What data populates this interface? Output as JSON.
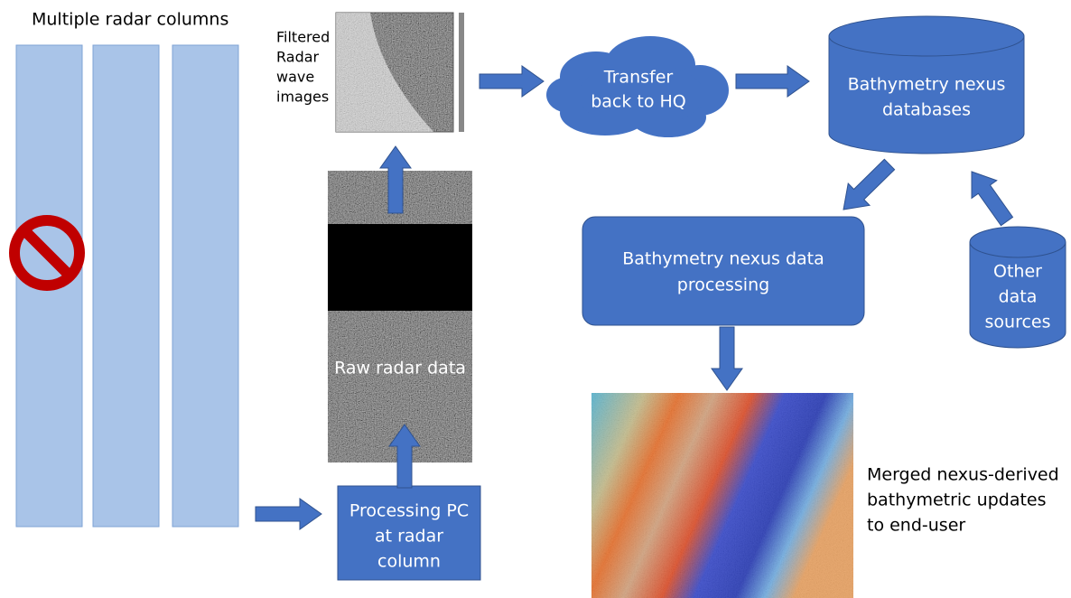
{
  "radar_columns": {
    "label": "Multiple radar columns"
  },
  "filtered_images": {
    "lines": [
      "Filtered",
      "Radar",
      "wave",
      "images"
    ]
  },
  "transfer": {
    "lines": [
      "Transfer",
      "back to HQ"
    ]
  },
  "databases": {
    "lines": [
      "Bathymetry nexus",
      "databases"
    ]
  },
  "processing": {
    "lines": [
      "Bathymetry nexus data",
      "processing"
    ]
  },
  "other_sources": {
    "lines": [
      "Other",
      "data",
      "sources"
    ]
  },
  "raw_data": {
    "label": "Raw radar data"
  },
  "processing_pc": {
    "lines": [
      "Processing PC",
      "at radar",
      "column"
    ]
  },
  "output": {
    "lines": [
      "Merged nexus-derived",
      "bathymetric updates",
      "to end-user"
    ]
  }
}
